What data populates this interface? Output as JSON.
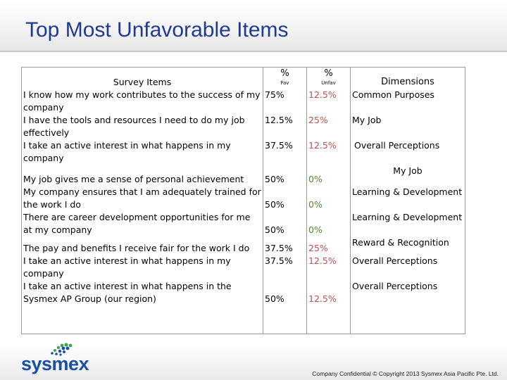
{
  "title": "Top Most Unfavorable Items",
  "table": {
    "headers": {
      "item": "Survey Items",
      "fav_symbol": "%",
      "fav_sub": "Fav",
      "unfav_symbol": "%",
      "unfav_sub": "Unfav",
      "dimension": "Dimensions"
    },
    "rows": [
      {
        "item": "I know how my work contributes to the success of my company",
        "fav": "75%",
        "unfav": "12.5%",
        "dimension": "Common Purposes"
      },
      {
        "item": "I have the tools and resources I need to do my job effectively",
        "fav": "12.5%",
        "unfav": "25%",
        "dimension": "My Job"
      },
      {
        "item": "I take an active interest in what happens in my company",
        "fav": "37.5%",
        "unfav": "12.5%",
        "dimension": "Overall Perceptions"
      },
      {
        "item": "My job gives me a sense of personal achievement",
        "fav": "50%",
        "unfav": "0%",
        "dimension": "My Job"
      },
      {
        "item": "My company ensures that I am adequately trained for the work I do",
        "fav": "50%",
        "unfav": "0%",
        "dimension": "Learning & Development"
      },
      {
        "item": "There are career development opportunities for me at my company",
        "fav": "50%",
        "unfav": "0%",
        "dimension": "Learning & Development"
      },
      {
        "item": "The pay and benefits I receive fair for the work I do",
        "fav": "37.5%",
        "unfav": "25%",
        "dimension": "Reward & Recognition"
      },
      {
        "item": "I take an active interest in what happens in my company",
        "fav": "37.5%",
        "unfav": "12.5%",
        "dimension": "Overall Perceptions"
      },
      {
        "item": "I take an active interest in what happens in the Sysmex AP Group (our region)",
        "fav": "50%",
        "unfav": "12.5%",
        "dimension": "Overall Perceptions"
      }
    ]
  },
  "footer": {
    "logo_text": "sysmex",
    "copyright": "Company Confidential © Copyright 2013 Sysmex Asia Pacific Pte. Ltd."
  },
  "colors": {
    "title": "#1f3a8f",
    "unfav_red": "#c0504d",
    "unfav_green": "#4f8a2b",
    "logo_blue": "#1b4fa0",
    "logo_green": "#3aa655"
  },
  "icons": {
    "logo": "sysmex-dots-logo"
  }
}
